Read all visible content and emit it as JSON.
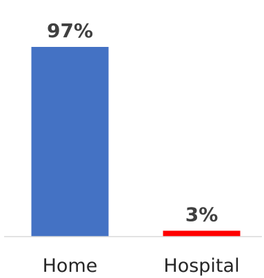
{
  "chart_data": {
    "type": "bar",
    "categories": [
      "Home",
      "Hospital"
    ],
    "values": [
      97,
      3
    ],
    "data_labels": [
      "97%",
      "3%"
    ],
    "bar_colors": [
      "#4472C4",
      "#FF0000"
    ],
    "axis_color": "#D9D9D9",
    "title": "",
    "xlabel": "",
    "ylabel": "",
    "ylim": [
      0,
      100
    ],
    "grid": false,
    "legend": "none"
  }
}
